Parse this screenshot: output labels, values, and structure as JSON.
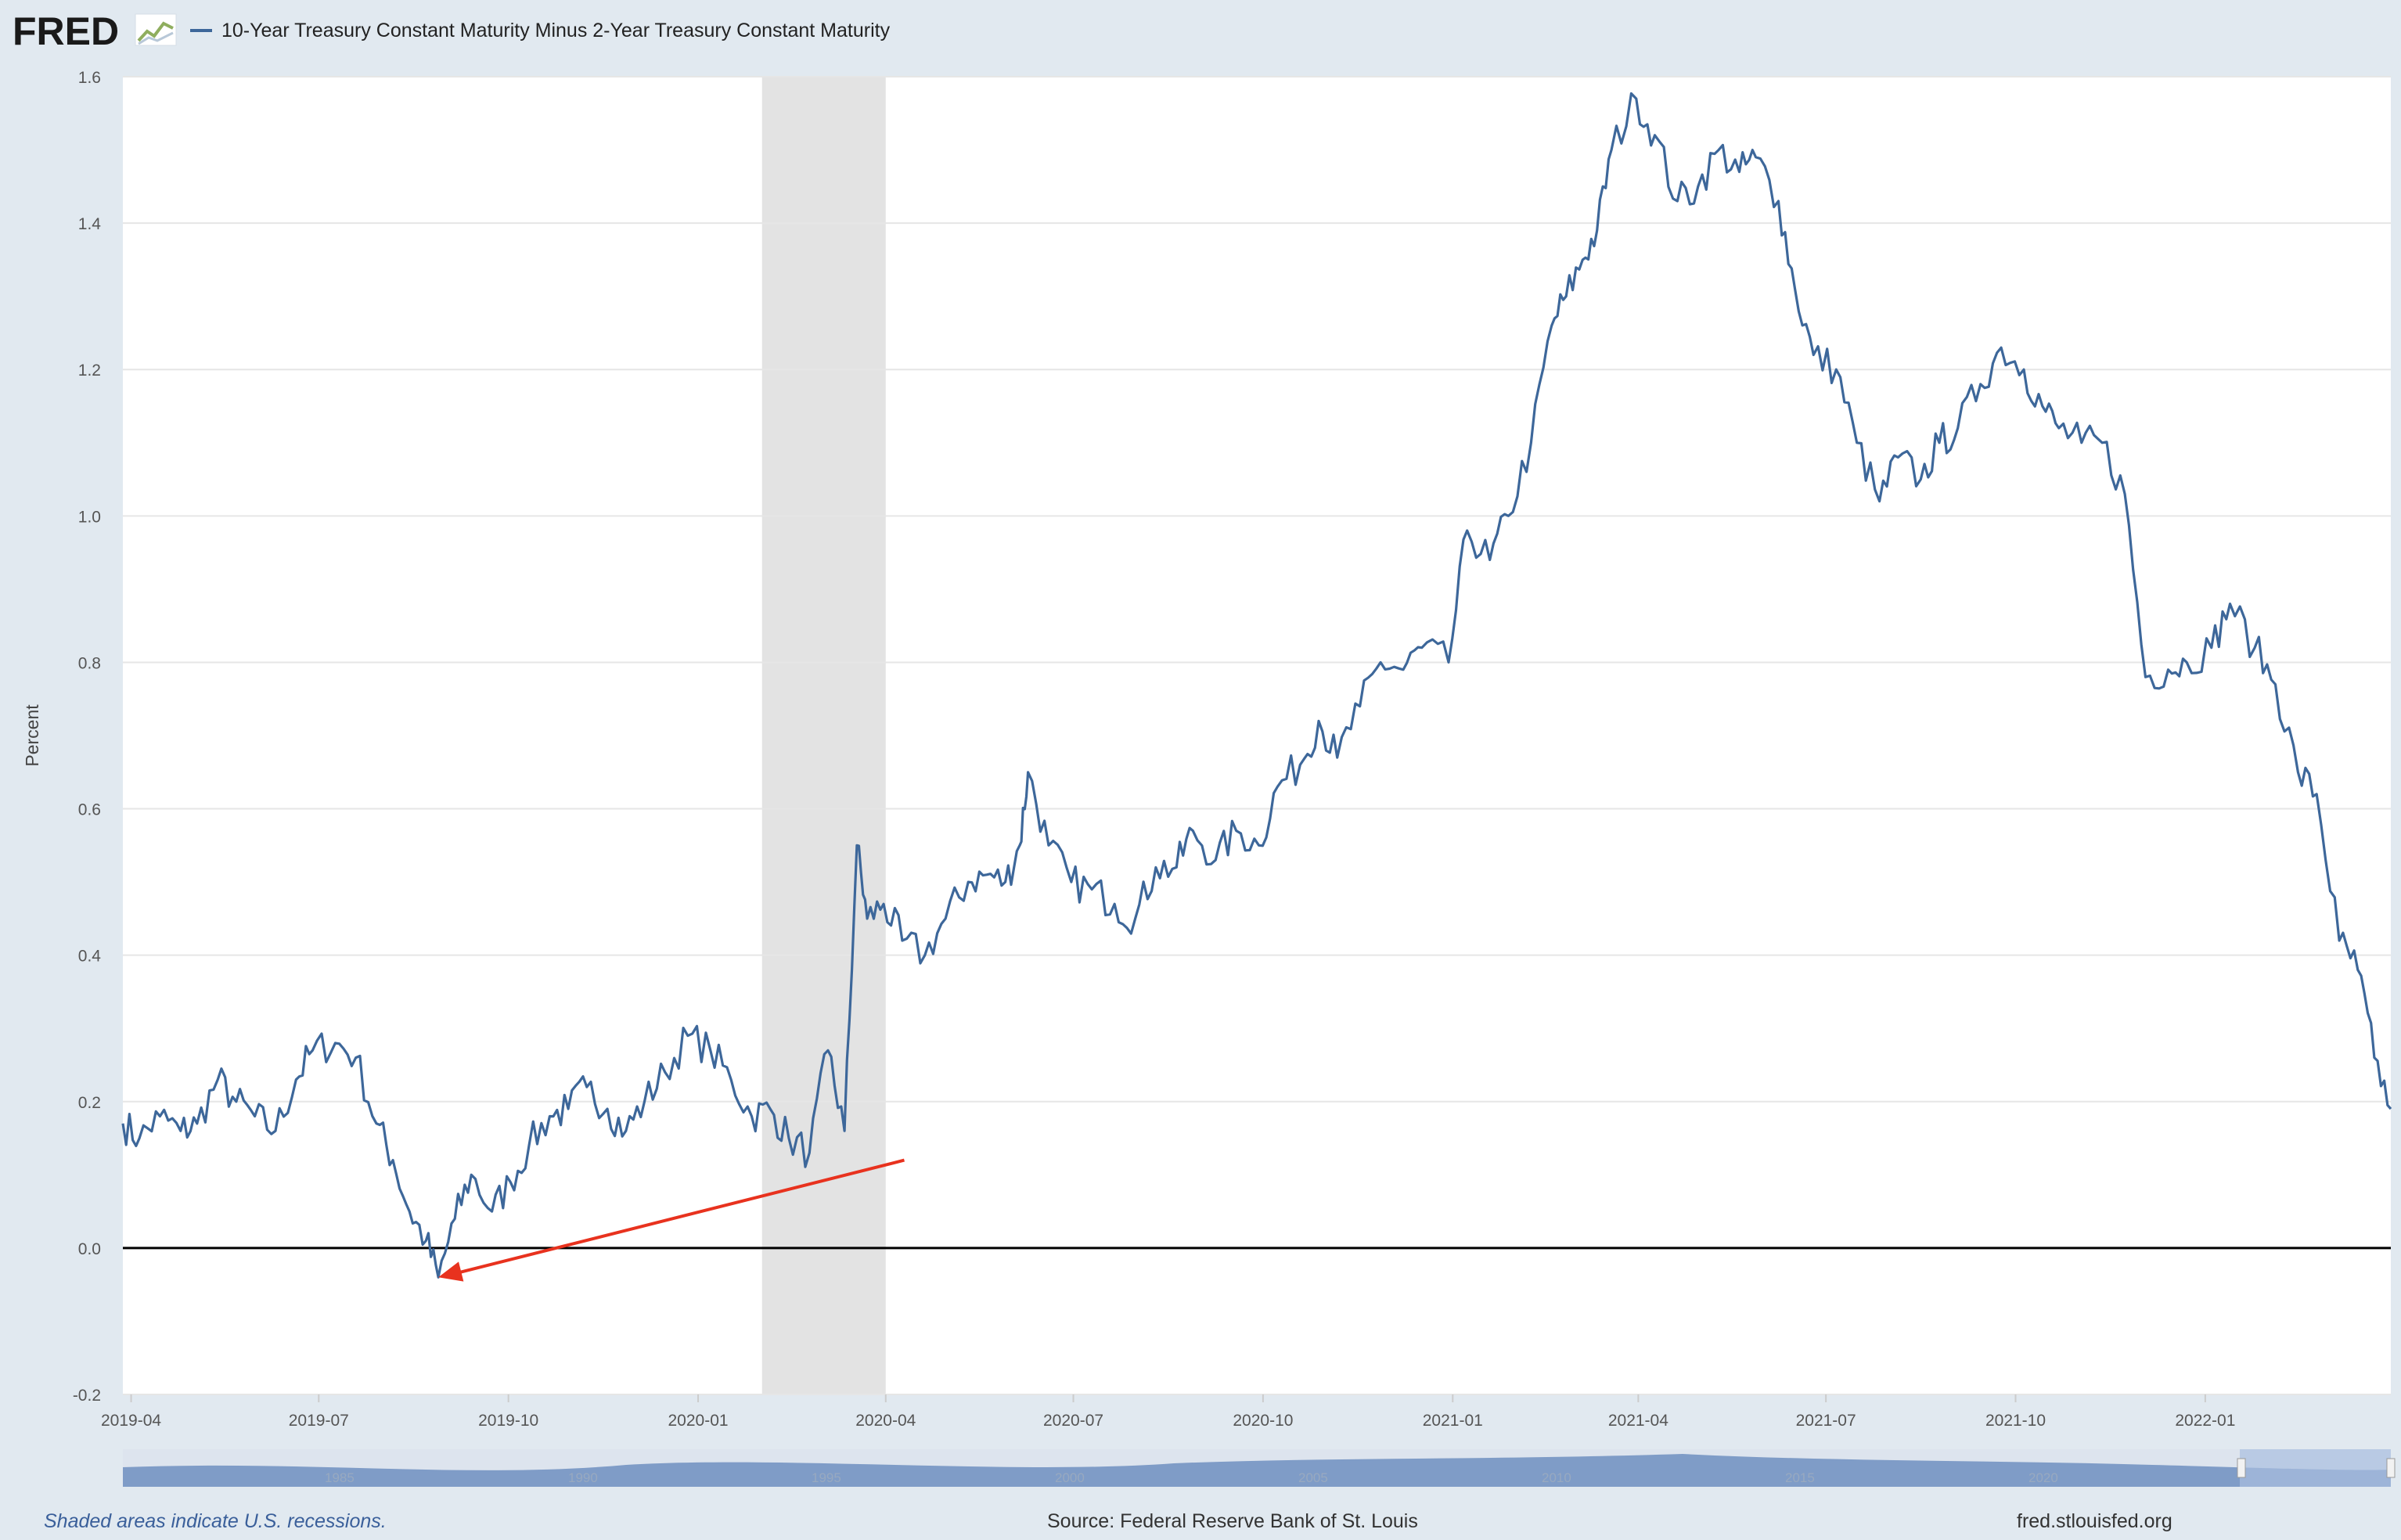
{
  "header": {
    "logo_text": "FRED",
    "logo_icon": "chart-line-icon",
    "series_title": "10-Year Treasury Constant Maturity Minus 2-Year Treasury Constant Maturity"
  },
  "footer": {
    "recession_note": "Shaded areas indicate U.S. recessions.",
    "source": "Source: Federal Reserve Bank of St. Louis",
    "site": "fred.stlouisfed.org"
  },
  "navigator": {
    "tick_labels": [
      "1985",
      "1990",
      "1995",
      "2000",
      "2005",
      "2010",
      "2015",
      "2020"
    ]
  },
  "colors": {
    "line": "#3d679a",
    "recession": "#e3e3e3",
    "zero_line": "#000000",
    "annotation_arrow": "#e8321e",
    "background": "#e1e9f0"
  },
  "chart_data": {
    "type": "line",
    "title": "10-Year Treasury Constant Maturity Minus 2-Year Treasury Constant Maturity",
    "xlabel": "",
    "ylabel": "Percent",
    "x_range": [
      "2019-03-28",
      "2022-04-01"
    ],
    "ylim": [
      -0.2,
      1.6
    ],
    "y_ticks": [
      -0.2,
      0.0,
      0.2,
      0.4,
      0.6,
      0.8,
      1.0,
      1.2,
      1.4,
      1.6
    ],
    "x_ticks": [
      "2019-04",
      "2019-07",
      "2019-10",
      "2020-01",
      "2020-04",
      "2020-07",
      "2020-10",
      "2021-01",
      "2021-04",
      "2021-07",
      "2021-10",
      "2022-01"
    ],
    "grid": "horizontal",
    "recession_shading": [
      {
        "start": "2020-02-01",
        "end": "2020-04-01"
      }
    ],
    "reference_line": {
      "y": 0.0,
      "color": "#000000"
    },
    "annotation": {
      "type": "arrow",
      "from": [
        "2020-04-10",
        0.12
      ],
      "to": [
        "2019-08-28",
        -0.04
      ],
      "color": "#e8321e"
    },
    "series": [
      {
        "name": "10-Year Treasury Constant Maturity Minus 2-Year Treasury Constant Maturity",
        "x": [
          "2019-03-28",
          "2019-04-05",
          "2019-04-15",
          "2019-04-25",
          "2019-05-03",
          "2019-05-13",
          "2019-05-22",
          "2019-05-31",
          "2019-06-10",
          "2019-06-20",
          "2019-06-28",
          "2019-07-09",
          "2019-07-19",
          "2019-07-29",
          "2019-08-06",
          "2019-08-14",
          "2019-08-22",
          "2019-08-28",
          "2019-09-05",
          "2019-09-13",
          "2019-09-23",
          "2019-10-02",
          "2019-10-11",
          "2019-10-21",
          "2019-10-30",
          "2019-11-08",
          "2019-11-18",
          "2019-11-27",
          "2019-12-06",
          "2019-12-16",
          "2019-12-27",
          "2020-01-07",
          "2020-01-17",
          "2020-01-27",
          "2020-02-05",
          "2020-02-14",
          "2020-02-24",
          "2020-03-04",
          "2020-03-12",
          "2020-03-18",
          "2020-03-23",
          "2020-03-31",
          "2020-04-09",
          "2020-04-20",
          "2020-04-30",
          "2020-05-11",
          "2020-05-20",
          "2020-05-29",
          "2020-06-05",
          "2020-06-09",
          "2020-06-19",
          "2020-06-30",
          "2020-07-10",
          "2020-07-21",
          "2020-07-31",
          "2020-08-10",
          "2020-08-20",
          "2020-08-28",
          "2020-09-08",
          "2020-09-18",
          "2020-09-29",
          "2020-10-08",
          "2020-10-19",
          "2020-10-28",
          "2020-11-06",
          "2020-11-17",
          "2020-11-27",
          "2020-12-08",
          "2020-12-17",
          "2020-12-30",
          "2021-01-08",
          "2021-01-19",
          "2021-01-28",
          "2021-02-08",
          "2021-02-18",
          "2021-02-25",
          "2021-03-05",
          "2021-03-12",
          "2021-03-19",
          "2021-03-31",
          "2021-04-09",
          "2021-04-20",
          "2021-04-30",
          "2021-05-10",
          "2021-05-20",
          "2021-05-28",
          "2021-06-08",
          "2021-06-16",
          "2021-06-25",
          "2021-07-06",
          "2021-07-16",
          "2021-07-27",
          "2021-08-05",
          "2021-08-16",
          "2021-08-25",
          "2021-09-03",
          "2021-09-14",
          "2021-09-24",
          "2021-10-05",
          "2021-10-14",
          "2021-10-22",
          "2021-11-02",
          "2021-11-12",
          "2021-11-23",
          "2021-12-03",
          "2021-12-14",
          "2021-12-23",
          "2022-01-04",
          "2022-01-13",
          "2022-01-25",
          "2022-02-04",
          "2022-02-15",
          "2022-02-24",
          "2022-03-07",
          "2022-03-16",
          "2022-03-24",
          "2022-04-01"
        ],
        "values": [
          0.17,
          0.15,
          0.18,
          0.16,
          0.17,
          0.23,
          0.2,
          0.18,
          0.16,
          0.23,
          0.27,
          0.28,
          0.26,
          0.17,
          0.12,
          0.05,
          0.01,
          -0.04,
          0.04,
          0.1,
          0.05,
          0.09,
          0.14,
          0.18,
          0.19,
          0.22,
          0.19,
          0.16,
          0.2,
          0.24,
          0.29,
          0.27,
          0.23,
          0.18,
          0.19,
          0.15,
          0.13,
          0.27,
          0.16,
          0.55,
          0.45,
          0.47,
          0.42,
          0.4,
          0.45,
          0.5,
          0.51,
          0.5,
          0.55,
          0.65,
          0.55,
          0.5,
          0.49,
          0.47,
          0.45,
          0.52,
          0.52,
          0.57,
          0.53,
          0.57,
          0.55,
          0.63,
          0.66,
          0.72,
          0.67,
          0.74,
          0.8,
          0.79,
          0.82,
          0.8,
          0.98,
          0.94,
          1.0,
          1.1,
          1.26,
          1.3,
          1.35,
          1.39,
          1.5,
          1.57,
          1.52,
          1.43,
          1.45,
          1.5,
          1.47,
          1.49,
          1.43,
          1.31,
          1.22,
          1.2,
          1.1,
          1.02,
          1.08,
          1.05,
          1.1,
          1.12,
          1.18,
          1.23,
          1.2,
          1.15,
          1.12,
          1.1,
          1.1,
          1.03,
          0.78,
          0.79,
          0.8,
          0.82,
          0.88,
          0.82,
          0.77,
          0.65,
          0.62,
          0.42,
          0.38,
          0.26,
          0.19
        ]
      }
    ]
  }
}
